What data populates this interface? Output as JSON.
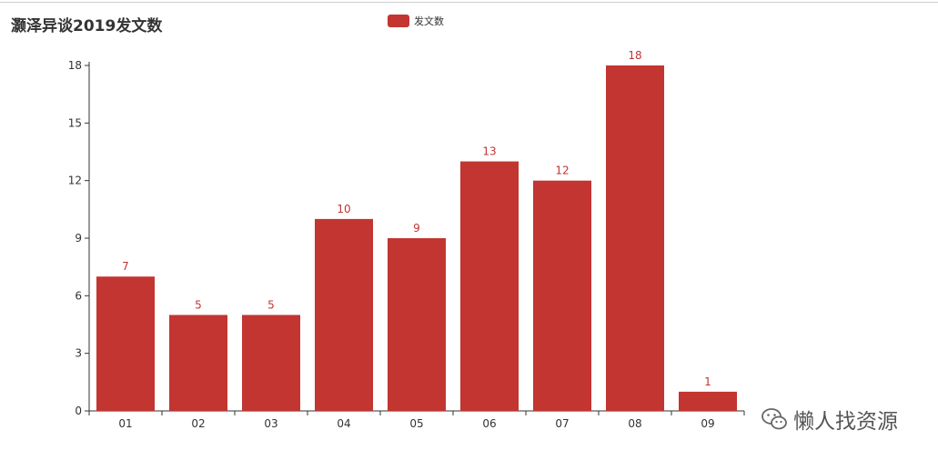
{
  "chart_data": {
    "type": "bar",
    "title": "灏泽异谈2019发文数",
    "categories": [
      "01",
      "02",
      "03",
      "04",
      "05",
      "06",
      "07",
      "08",
      "09"
    ],
    "series": [
      {
        "name": "发文数",
        "values": [
          7,
          5,
          5,
          10,
          9,
          13,
          12,
          18,
          1
        ],
        "color": "#c23531"
      }
    ],
    "ylim": [
      0,
      18
    ],
    "yticks": [
      0,
      3,
      6,
      9,
      12,
      15,
      18
    ],
    "xlabel": "",
    "ylabel": "",
    "grid": false,
    "legend_position": "top-center",
    "data_labels": true
  },
  "watermark": {
    "icon": "wechat-icon",
    "label": "懒人找资源"
  }
}
